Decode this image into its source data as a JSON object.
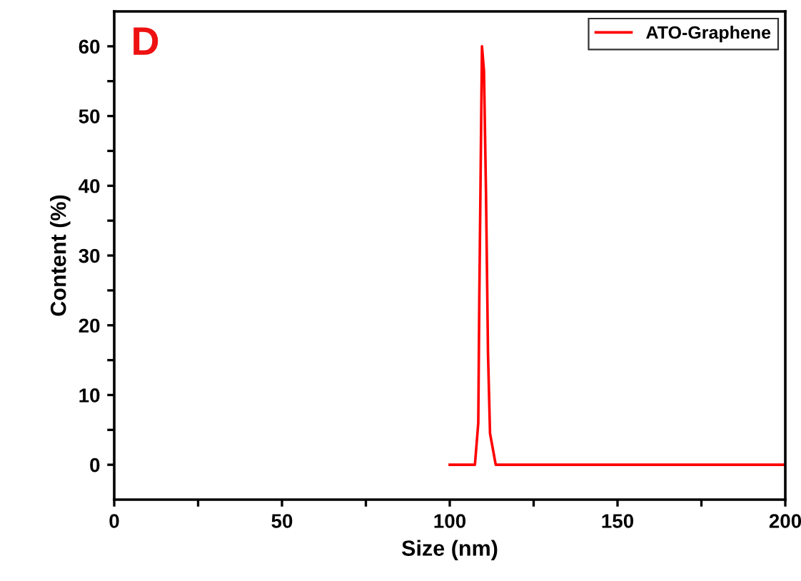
{
  "chart_data": {
    "type": "line",
    "xlabel": "Size (nm)",
    "ylabel": "Content (%)",
    "annotations": [
      "D"
    ],
    "xlim": [
      0,
      200
    ],
    "ylim": [
      -5,
      65
    ],
    "xticks": [
      0,
      {
        "value": 25,
        "label": null
      },
      50,
      {
        "value": 75,
        "label": null
      },
      100,
      {
        "value": 125,
        "label": null
      },
      150,
      {
        "value": 175,
        "label": null
      },
      200
    ],
    "yticks": [
      0,
      {
        "value": 5,
        "label": null
      },
      10,
      {
        "value": 15,
        "label": null
      },
      20,
      {
        "value": 25,
        "label": null
      },
      30,
      {
        "value": 35,
        "label": null
      },
      40,
      {
        "value": 45,
        "label": null
      },
      50,
      {
        "value": 55,
        "label": null
      },
      60
    ],
    "series": [
      {
        "name": "ATO-Graphene",
        "color": "#ff0000",
        "x": [
          100,
          107.5,
          108.5,
          108.8,
          109.2,
          109.6,
          110.2,
          110.8,
          111.4,
          112,
          113.7,
          200
        ],
        "values": [
          0,
          0,
          6,
          23.6,
          41.7,
          60,
          56.5,
          39,
          16,
          4.5,
          0,
          0
        ]
      }
    ],
    "grid": false,
    "legend": "top right",
    "marker": "none",
    "line_style": "solid"
  }
}
